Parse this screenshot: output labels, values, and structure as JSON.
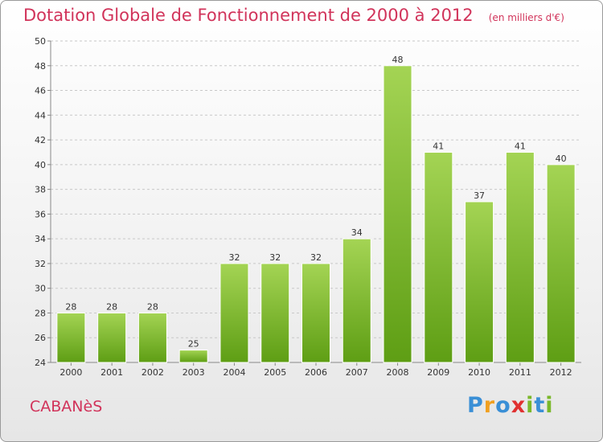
{
  "header": {
    "title": "Dotation Globale de Fonctionnement de 2000 à 2012",
    "subtitle": "(en milliers d'€)"
  },
  "footer": {
    "commune": "CABANèS",
    "brand": {
      "text": "Proxiti",
      "letters": [
        {
          "char": "P",
          "color": "#3a8fd6"
        },
        {
          "char": "r",
          "color": "#f0a020"
        },
        {
          "char": "o",
          "color": "#3a8fd6"
        },
        {
          "char": "x",
          "color": "#e03030"
        },
        {
          "char": "i",
          "color": "#7ab82a"
        },
        {
          "char": "t",
          "color": "#3a8fd6"
        },
        {
          "char": "i",
          "color": "#7ab82a"
        }
      ]
    }
  },
  "chart_data": {
    "type": "bar",
    "title": "Dotation Globale de Fonctionnement de 2000 à 2012",
    "subtitle": "(en milliers d'€)",
    "categories": [
      "2000",
      "2001",
      "2002",
      "2003",
      "2004",
      "2005",
      "2006",
      "2007",
      "2008",
      "2009",
      "2010",
      "2011",
      "2012"
    ],
    "values": [
      28,
      28,
      28,
      25,
      32,
      32,
      32,
      34,
      48,
      41,
      37,
      41,
      40
    ],
    "ylim": [
      24,
      50
    ],
    "yticks": [
      24,
      26,
      28,
      30,
      32,
      34,
      36,
      38,
      40,
      42,
      44,
      46,
      48,
      50
    ],
    "grid": "horizontal-dashed",
    "legend": "none",
    "colors": {
      "bar_light": "#a4d454",
      "bar_dark": "#5e9e14",
      "grid": "#c8c8c8",
      "axis": "#888888"
    }
  }
}
